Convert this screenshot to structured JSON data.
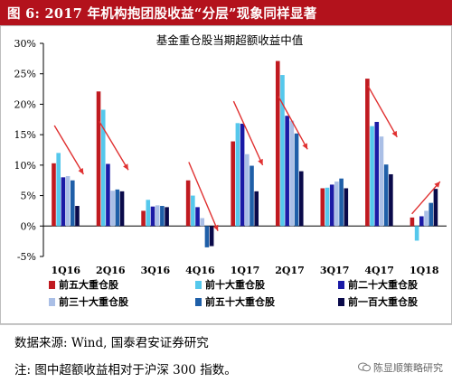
{
  "figure": {
    "title": "图 6: 2017 年机构抱团股收益“分层”现象同样显著",
    "source": "数据来源: Wind, 国泰君安证券研究",
    "footnote": "注: 图中超额收益相对于沪深 300 指数。",
    "watermark": "陈显顺策略研究",
    "colors": {
      "header": "#b3121c",
      "arrow": "#e03030"
    }
  },
  "chart_data": {
    "type": "bar",
    "title": "基金重仓股当期超额收益中值",
    "xlabel": "",
    "ylabel": "",
    "categories": [
      "1Q16",
      "2Q16",
      "3Q16",
      "4Q16",
      "1Q17",
      "2Q17",
      "3Q17",
      "4Q17",
      "1Q18"
    ],
    "ylim": [
      -5,
      30
    ],
    "yticks": [
      -5,
      0,
      5,
      10,
      15,
      20,
      25,
      30
    ],
    "yticklabels": [
      "-5%",
      "0%",
      "5%",
      "10%",
      "15%",
      "20%",
      "25%",
      "30%"
    ],
    "grid": false,
    "legend": "bottom",
    "series": [
      {
        "name": "前五大重仓股",
        "color": "#c01a20",
        "values": [
          10.3,
          22.1,
          2.5,
          7.5,
          13.9,
          27.1,
          6.2,
          24.2,
          1.4
        ]
      },
      {
        "name": "前十大重仓股",
        "color": "#55c8ec",
        "values": [
          12.0,
          19.1,
          4.3,
          5.0,
          16.9,
          24.8,
          6.3,
          16.4,
          -2.4
        ]
      },
      {
        "name": "前二十大重仓股",
        "color": "#1a1aa6",
        "values": [
          8.0,
          10.2,
          3.2,
          3.1,
          16.8,
          18.1,
          6.8,
          17.1,
          1.6
        ]
      },
      {
        "name": "前三十大重仓股",
        "color": "#aabfe6",
        "values": [
          8.2,
          5.8,
          3.4,
          1.3,
          11.8,
          17.3,
          7.3,
          14.7,
          2.5
        ]
      },
      {
        "name": "前五十大重仓股",
        "color": "#1f5fa8",
        "values": [
          7.5,
          6.0,
          3.3,
          -3.5,
          9.9,
          15.2,
          7.8,
          10.1,
          3.8
        ]
      },
      {
        "name": "前一百大重仓股",
        "color": "#0a0a4a",
        "values": [
          3.3,
          5.7,
          3.1,
          -3.3,
          5.7,
          9.0,
          6.2,
          8.5,
          6.1
        ]
      }
    ],
    "trend_arrows": [
      {
        "category": "1Q16",
        "from": 16.5,
        "to": 8.5,
        "direction": "down"
      },
      {
        "category": "2Q16",
        "from": 17.2,
        "to": 9.2,
        "direction": "down"
      },
      {
        "category": "4Q16",
        "from": 10.5,
        "to": -0.8,
        "direction": "down"
      },
      {
        "category": "1Q17",
        "from": 20.5,
        "to": 10.0,
        "direction": "down"
      },
      {
        "category": "2Q17",
        "from": 21.3,
        "to": 12.6,
        "direction": "down"
      },
      {
        "category": "4Q17",
        "from": 23.0,
        "to": 14.6,
        "direction": "down"
      },
      {
        "category": "1Q18",
        "from": 2.0,
        "to": 7.3,
        "direction": "up"
      }
    ]
  }
}
